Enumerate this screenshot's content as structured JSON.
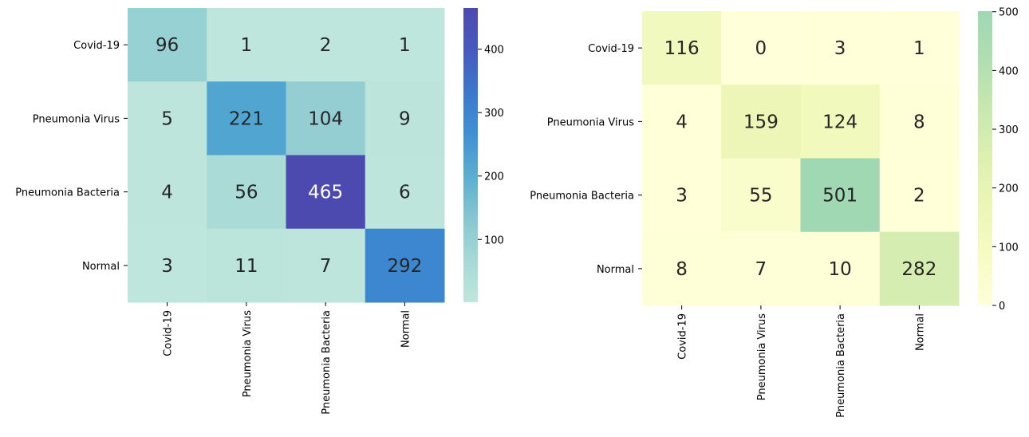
{
  "chart_data": [
    {
      "type": "heatmap",
      "rows": [
        "Covid-19",
        "Pneumonia Virus",
        "Pneumonia Bacteria",
        "Normal"
      ],
      "columns": [
        "Covid-19",
        "Pneumonia Virus",
        "Pneumonia Bacteria",
        "Normal"
      ],
      "values": [
        [
          96,
          1,
          2,
          1
        ],
        [
          5,
          221,
          104,
          9
        ],
        [
          4,
          56,
          465,
          6
        ],
        [
          3,
          11,
          7,
          292
        ]
      ],
      "colorbar": {
        "min": 1,
        "max": 465,
        "ticks": [
          100,
          200,
          300,
          400
        ]
      },
      "colorscale": [
        "#bfe6dc",
        "#a6d9d6",
        "#86c6d1",
        "#5aaed0",
        "#3f91d3",
        "#3b78cc",
        "#4659bf",
        "#4d4aaf"
      ]
    },
    {
      "type": "heatmap",
      "rows": [
        "Covid-19",
        "Pneumonia Virus",
        "Pneumonia Bacteria",
        "Normal"
      ],
      "columns": [
        "Covid-19",
        "Pneumonia Virus",
        "Pneumonia Bacteria",
        "Normal"
      ],
      "values": [
        [
          116,
          0,
          3,
          1
        ],
        [
          4,
          159,
          124,
          8
        ],
        [
          3,
          55,
          501,
          2
        ],
        [
          8,
          7,
          10,
          282
        ]
      ],
      "colorbar": {
        "min": 0,
        "max": 501,
        "ticks": [
          0,
          100,
          200,
          300,
          400,
          500
        ]
      },
      "colorscale": [
        "#ffffd9",
        "#f6fbc4",
        "#ecf6b6",
        "#ddf0b0",
        "#c8e8b0",
        "#b1deb2",
        "#9fd8b3"
      ]
    }
  ]
}
